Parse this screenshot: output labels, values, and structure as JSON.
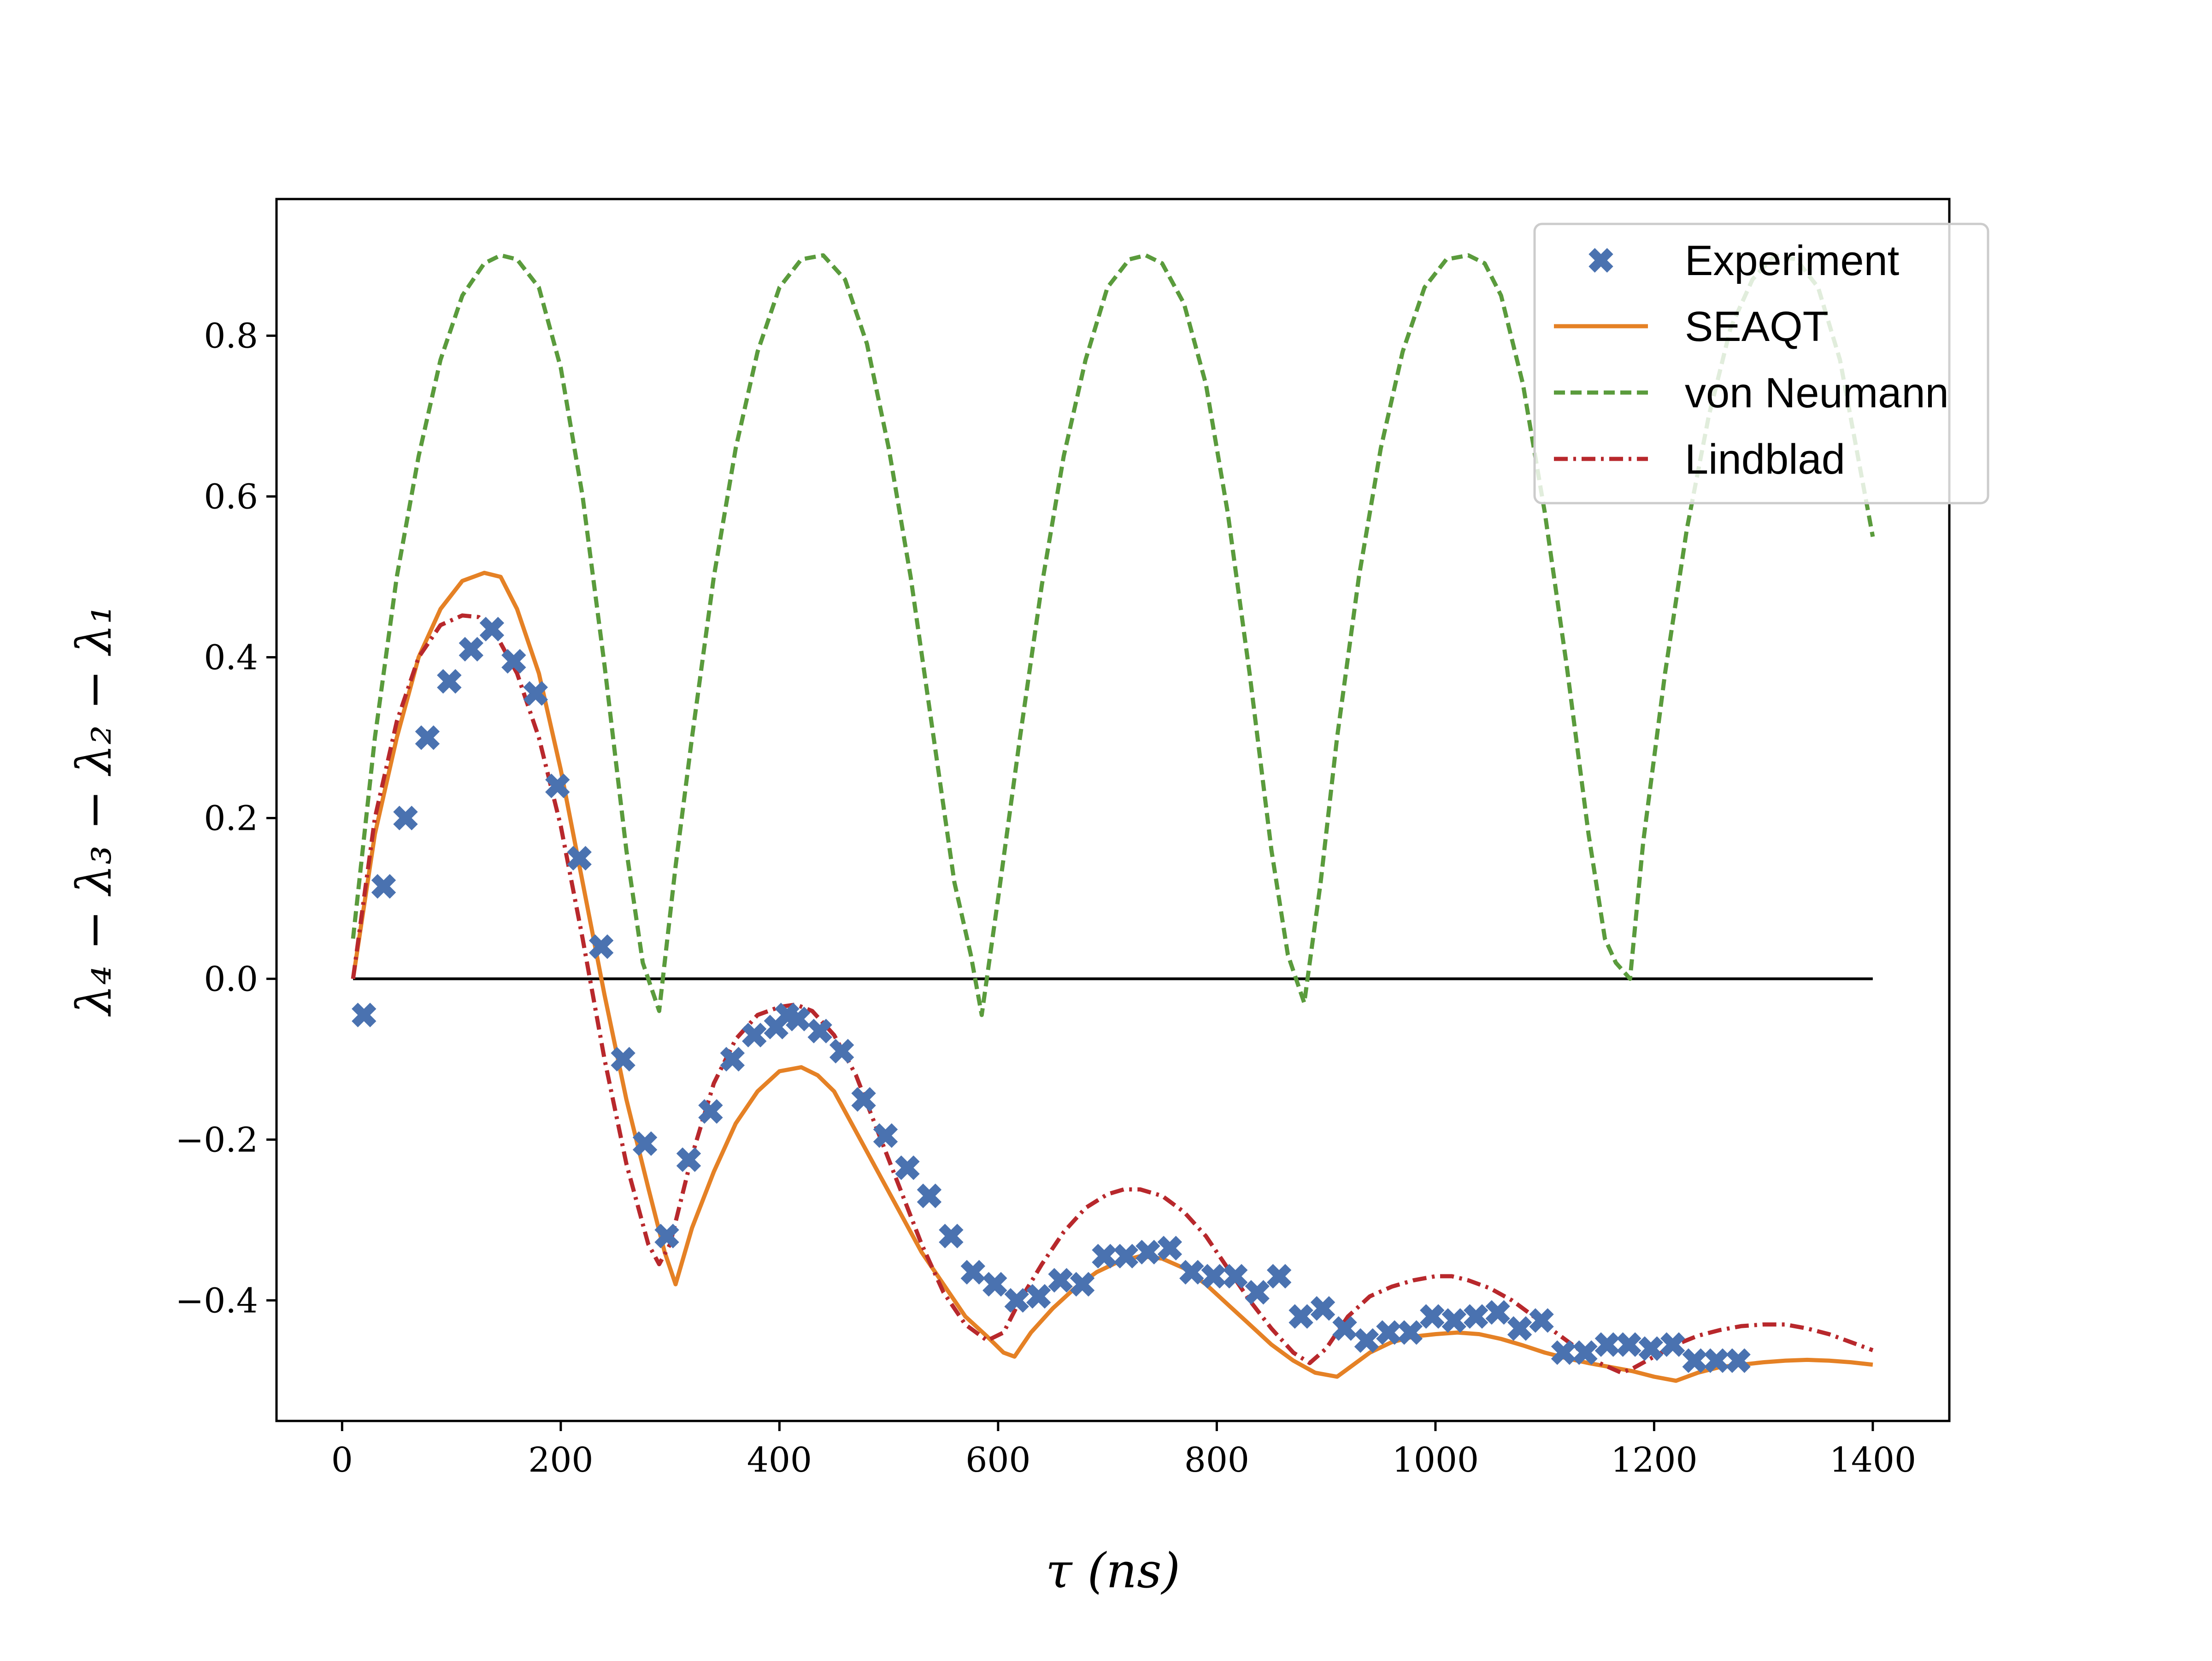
{
  "chart_data": {
    "type": "line",
    "title": "",
    "xlabel": "τ (ns)",
    "ylabel": "λ₄ − λ₃ − λ₂ − λ₁",
    "xlim": [
      -60,
      1470
    ],
    "ylim": [
      -0.55,
      0.97
    ],
    "xticks": [
      0,
      200,
      400,
      600,
      800,
      1000,
      1200,
      1400
    ],
    "yticks": [
      -0.4,
      -0.2,
      0.0,
      0.2,
      0.4,
      0.6,
      0.8
    ],
    "ytick_labels": [
      "−0.4",
      "−0.2",
      "0.0",
      "0.2",
      "0.4",
      "0.6",
      "0.8"
    ],
    "xtick_labels": [
      "0",
      "200",
      "400",
      "600",
      "800",
      "1000",
      "1200",
      "1400"
    ],
    "grid": false,
    "legend_position": "top-right",
    "reference_line": {
      "y": 0.0,
      "x_range": [
        10,
        1400
      ],
      "color": "#000000"
    },
    "series": [
      {
        "name": "Experiment",
        "kind": "scatter",
        "marker": "X",
        "color": "#4a72b0",
        "x": [
          20,
          38,
          58,
          78,
          98,
          118,
          137,
          157,
          177,
          197,
          217,
          237,
          257,
          277,
          297,
          317,
          337,
          357,
          377,
          397,
          407,
          417,
          437,
          457,
          477,
          497,
          517,
          537,
          557,
          577,
          597,
          617,
          637,
          657,
          677,
          697,
          717,
          737,
          757,
          777,
          797,
          817,
          837,
          857,
          877,
          897,
          917,
          937,
          957,
          977,
          997,
          1017,
          1037,
          1057,
          1077,
          1097,
          1117,
          1137,
          1157,
          1177,
          1197,
          1217,
          1237,
          1257,
          1277
        ],
        "y": [
          -0.045,
          0.115,
          0.2,
          0.3,
          0.37,
          0.41,
          0.435,
          0.395,
          0.355,
          0.24,
          0.15,
          0.04,
          -0.1,
          -0.205,
          -0.32,
          -0.225,
          -0.165,
          -0.1,
          -0.07,
          -0.06,
          -0.045,
          -0.05,
          -0.065,
          -0.09,
          -0.15,
          -0.195,
          -0.235,
          -0.27,
          -0.32,
          -0.365,
          -0.38,
          -0.4,
          -0.395,
          -0.375,
          -0.38,
          -0.345,
          -0.345,
          -0.34,
          -0.335,
          -0.365,
          -0.37,
          -0.37,
          -0.39,
          -0.37,
          -0.42,
          -0.41,
          -0.435,
          -0.45,
          -0.44,
          -0.44,
          -0.42,
          -0.425,
          -0.42,
          -0.415,
          -0.435,
          -0.425,
          -0.465,
          -0.465,
          -0.455,
          -0.455,
          -0.46,
          -0.455,
          -0.475,
          -0.475,
          -0.475
        ]
      },
      {
        "name": "SEAQT",
        "kind": "line",
        "style": "solid",
        "color": "#e58125",
        "x": [
          10,
          30,
          50,
          70,
          90,
          110,
          130,
          145,
          160,
          180,
          200,
          220,
          240,
          260,
          280,
          295,
          305,
          320,
          340,
          360,
          380,
          400,
          420,
          435,
          450,
          470,
          490,
          510,
          530,
          550,
          570,
          590,
          605,
          615,
          630,
          650,
          670,
          690,
          710,
          730,
          750,
          770,
          790,
          810,
          830,
          850,
          870,
          890,
          910,
          925,
          940,
          960,
          980,
          1000,
          1020,
          1040,
          1060,
          1080,
          1100,
          1120,
          1140,
          1160,
          1180,
          1200,
          1220,
          1240,
          1260,
          1280,
          1300,
          1320,
          1340,
          1360,
          1380,
          1400
        ],
        "y": [
          0.0,
          0.18,
          0.3,
          0.4,
          0.46,
          0.495,
          0.505,
          0.5,
          0.46,
          0.38,
          0.26,
          0.12,
          -0.02,
          -0.15,
          -0.26,
          -0.34,
          -0.38,
          -0.31,
          -0.24,
          -0.18,
          -0.14,
          -0.115,
          -0.11,
          -0.12,
          -0.14,
          -0.19,
          -0.24,
          -0.29,
          -0.34,
          -0.38,
          -0.42,
          -0.445,
          -0.465,
          -0.47,
          -0.44,
          -0.41,
          -0.385,
          -0.365,
          -0.352,
          -0.345,
          -0.348,
          -0.36,
          -0.38,
          -0.405,
          -0.43,
          -0.455,
          -0.475,
          -0.49,
          -0.495,
          -0.48,
          -0.465,
          -0.452,
          -0.445,
          -0.442,
          -0.44,
          -0.442,
          -0.448,
          -0.456,
          -0.465,
          -0.472,
          -0.478,
          -0.483,
          -0.488,
          -0.495,
          -0.5,
          -0.49,
          -0.483,
          -0.48,
          -0.477,
          -0.475,
          -0.474,
          -0.475,
          -0.477,
          -0.48
        ]
      },
      {
        "name": "von Neumann",
        "kind": "line",
        "style": "dashed",
        "color": "#5a9b3c",
        "x": [
          10,
          30,
          50,
          70,
          90,
          110,
          130,
          145,
          160,
          180,
          200,
          220,
          240,
          260,
          275,
          290,
          305,
          320,
          340,
          360,
          380,
          400,
          420,
          440,
          460,
          480,
          500,
          520,
          540,
          560,
          575,
          585,
          600,
          620,
          640,
          660,
          680,
          700,
          720,
          735,
          750,
          770,
          790,
          810,
          830,
          850,
          865,
          880,
          895,
          910,
          930,
          950,
          970,
          990,
          1010,
          1030,
          1045,
          1060,
          1080,
          1100,
          1120,
          1140,
          1155,
          1165,
          1178,
          1190,
          1210,
          1230,
          1250,
          1270,
          1290,
          1310,
          1330,
          1350,
          1370,
          1385,
          1400
        ],
        "y": [
          0.05,
          0.3,
          0.5,
          0.65,
          0.77,
          0.85,
          0.89,
          0.9,
          0.895,
          0.86,
          0.76,
          0.6,
          0.39,
          0.16,
          0.02,
          -0.04,
          0.14,
          0.3,
          0.5,
          0.66,
          0.78,
          0.86,
          0.895,
          0.9,
          0.87,
          0.79,
          0.66,
          0.5,
          0.31,
          0.12,
          0.03,
          -0.045,
          0.1,
          0.3,
          0.49,
          0.65,
          0.77,
          0.86,
          0.895,
          0.9,
          0.89,
          0.84,
          0.74,
          0.58,
          0.38,
          0.16,
          0.03,
          -0.03,
          0.12,
          0.3,
          0.5,
          0.66,
          0.78,
          0.86,
          0.895,
          0.9,
          0.89,
          0.85,
          0.74,
          0.58,
          0.39,
          0.18,
          0.05,
          0.02,
          0.0,
          0.17,
          0.38,
          0.56,
          0.7,
          0.81,
          0.87,
          0.9,
          0.895,
          0.86,
          0.77,
          0.66,
          0.55
        ]
      },
      {
        "name": "Lindblad",
        "kind": "line",
        "style": "dashdot",
        "color": "#b8282c",
        "x": [
          10,
          30,
          50,
          70,
          90,
          110,
          125,
          140,
          160,
          180,
          200,
          220,
          240,
          260,
          280,
          290,
          300,
          320,
          340,
          360,
          380,
          400,
          415,
          430,
          450,
          470,
          490,
          510,
          530,
          550,
          570,
          590,
          605,
          620,
          640,
          660,
          680,
          700,
          715,
          730,
          750,
          770,
          790,
          810,
          830,
          850,
          870,
          885,
          900,
          920,
          940,
          960,
          980,
          1000,
          1015,
          1030,
          1050,
          1070,
          1090,
          1110,
          1130,
          1150,
          1170,
          1180,
          1200,
          1220,
          1240,
          1260,
          1280,
          1300,
          1320,
          1340,
          1360,
          1380,
          1400
        ],
        "y": [
          0.0,
          0.2,
          0.32,
          0.4,
          0.44,
          0.452,
          0.45,
          0.43,
          0.38,
          0.3,
          0.19,
          0.05,
          -0.1,
          -0.23,
          -0.33,
          -0.355,
          -0.33,
          -0.22,
          -0.13,
          -0.075,
          -0.045,
          -0.035,
          -0.032,
          -0.04,
          -0.07,
          -0.12,
          -0.19,
          -0.26,
          -0.33,
          -0.39,
          -0.43,
          -0.45,
          -0.44,
          -0.4,
          -0.355,
          -0.315,
          -0.285,
          -0.268,
          -0.262,
          -0.262,
          -0.27,
          -0.29,
          -0.32,
          -0.36,
          -0.4,
          -0.435,
          -0.465,
          -0.478,
          -0.46,
          -0.42,
          -0.395,
          -0.383,
          -0.375,
          -0.37,
          -0.37,
          -0.375,
          -0.385,
          -0.4,
          -0.42,
          -0.44,
          -0.46,
          -0.478,
          -0.49,
          -0.485,
          -0.47,
          -0.455,
          -0.444,
          -0.437,
          -0.432,
          -0.43,
          -0.43,
          -0.435,
          -0.442,
          -0.452,
          -0.462
        ]
      }
    ]
  }
}
